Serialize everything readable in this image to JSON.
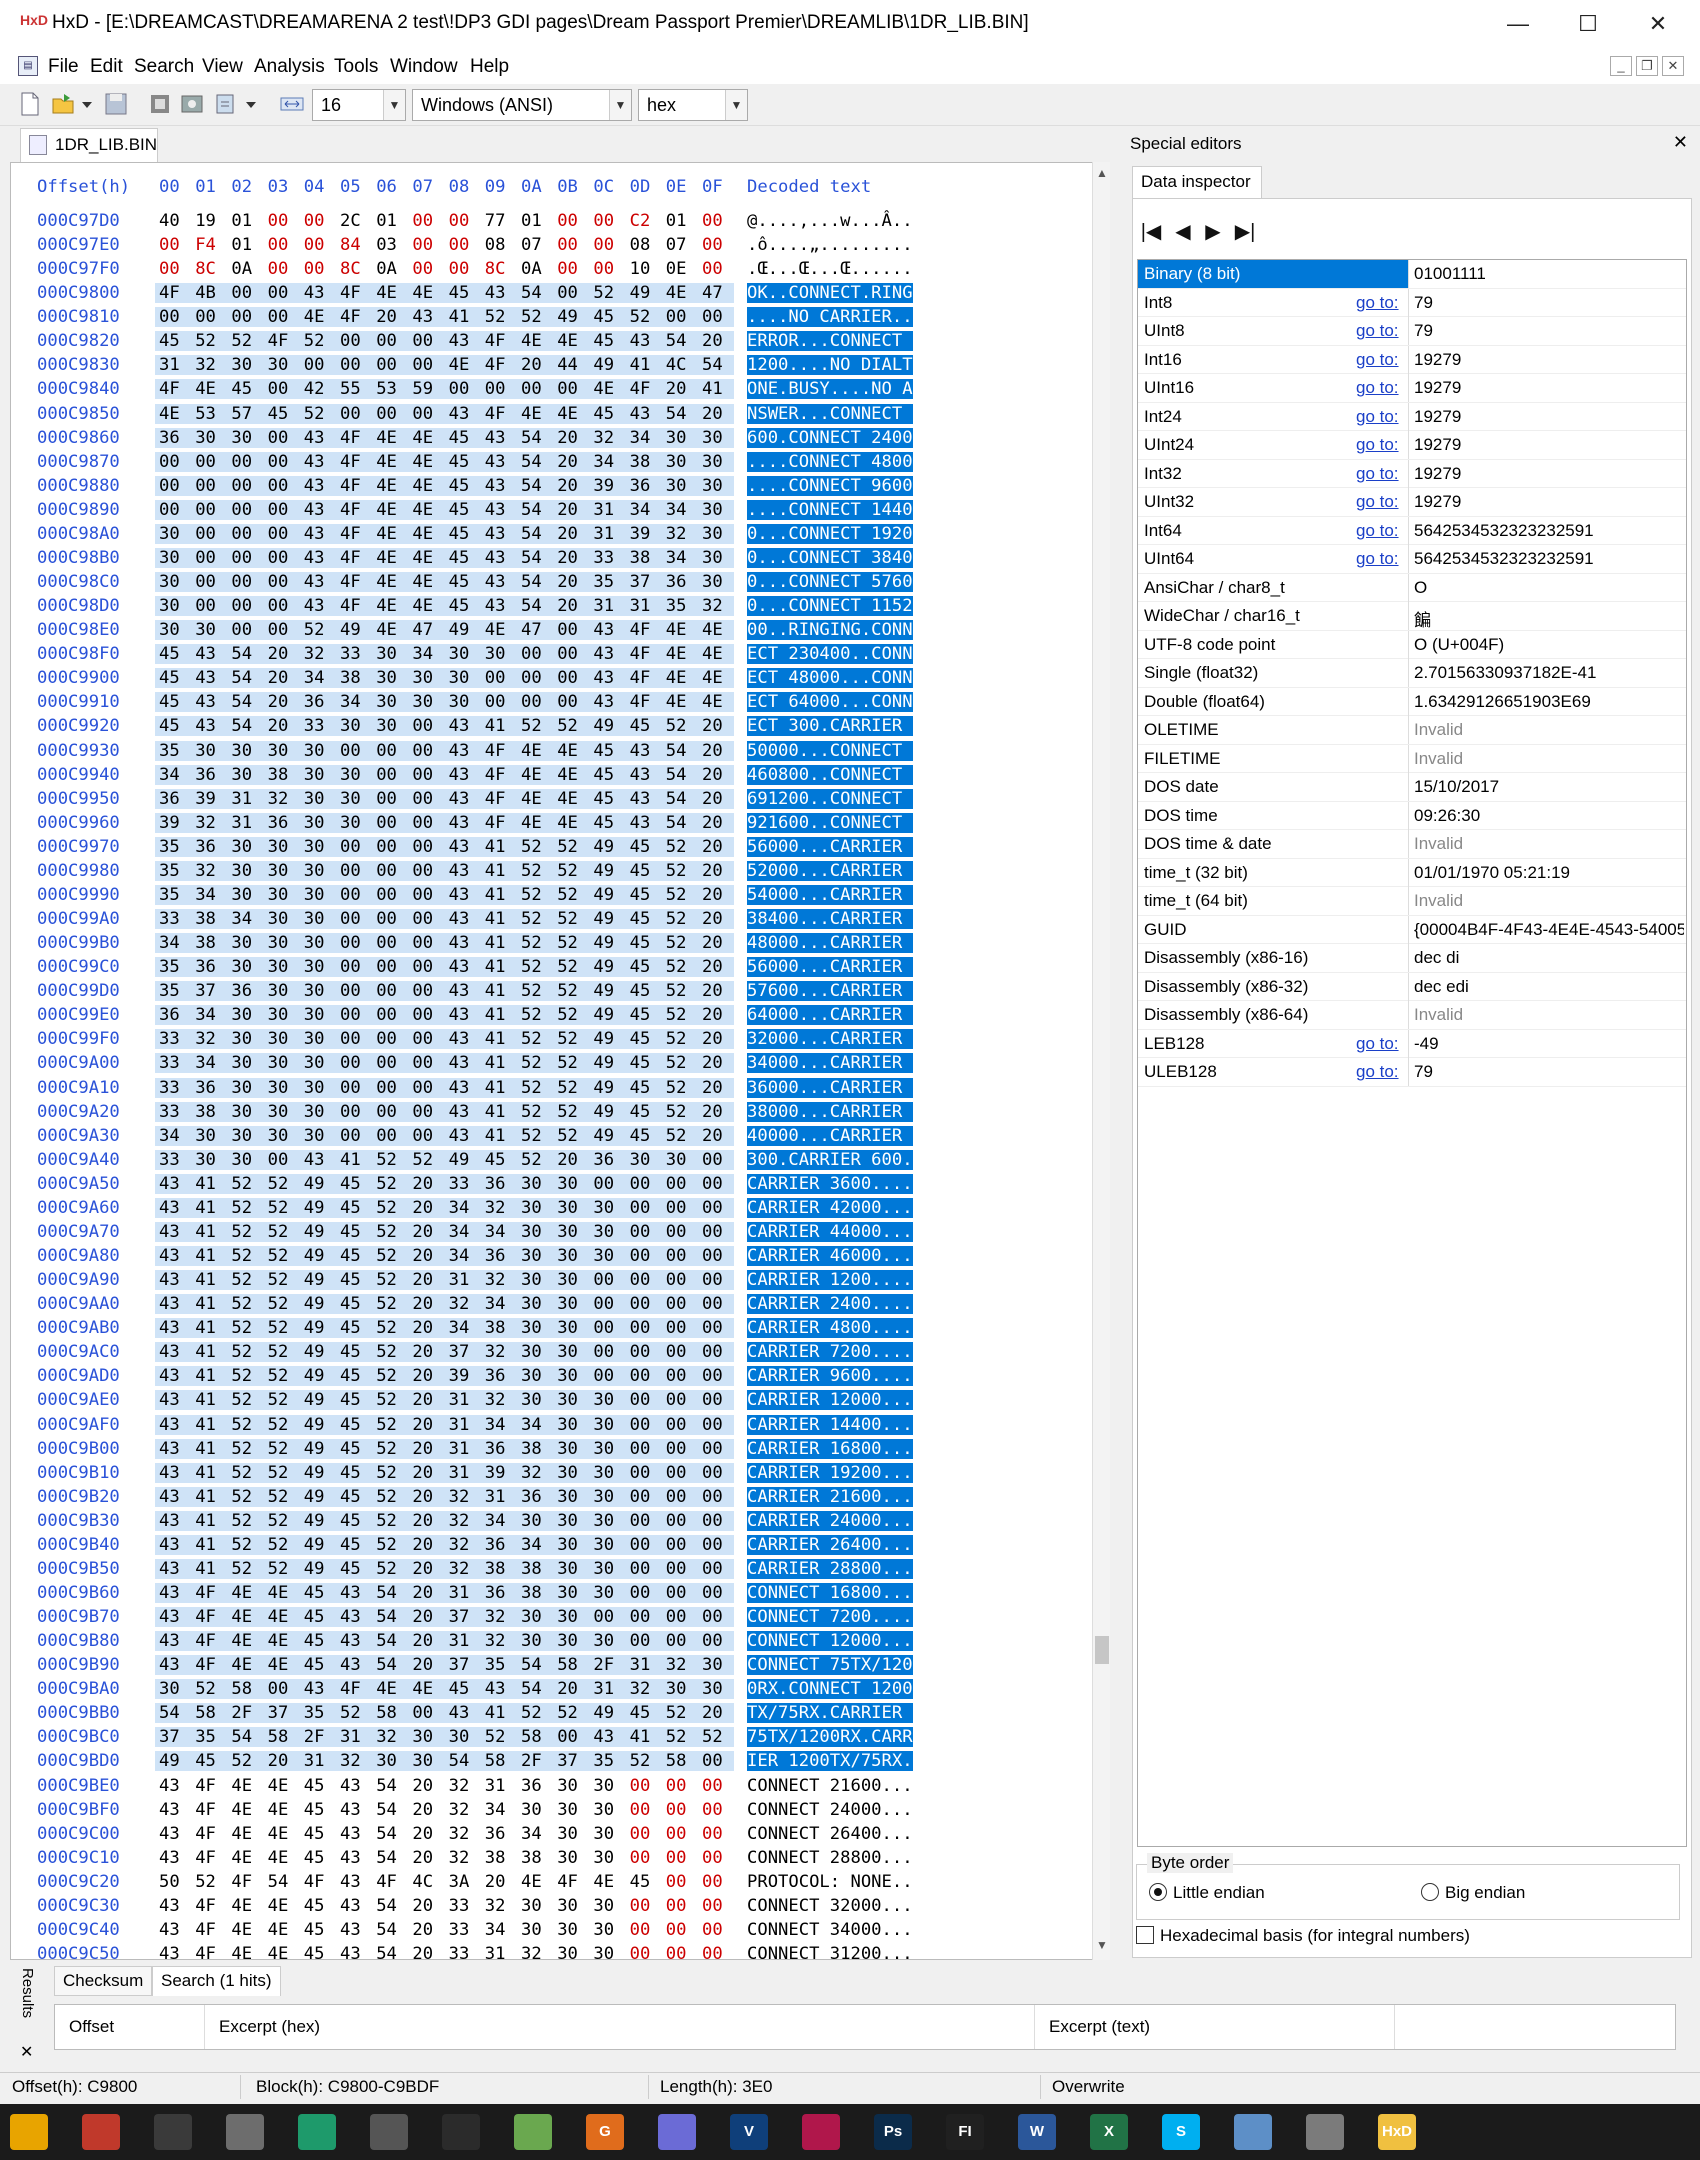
{
  "window": {
    "title": "HxD - [E:\\DREAMCAST\\DREAMARENA 2 test\\!DP3 GDI pages\\Dream Passport Premier\\DREAMLIB\\1DR_LIB.BIN]",
    "app_icon_text": "HxD",
    "minimize": "—",
    "maximize": "☐",
    "close": "✕"
  },
  "menubar": {
    "items": [
      "File",
      "Edit",
      "Search",
      "View",
      "Analysis",
      "Tools",
      "Window",
      "Help"
    ],
    "mdi_controls": [
      "_",
      "❐",
      "✕"
    ]
  },
  "toolbar": {
    "bytes_per_row": "16",
    "charset": "Windows (ANSI)",
    "offset_base": "hex"
  },
  "document_tab": {
    "label": "1DR_LIB.BIN"
  },
  "hex_view": {
    "header_offset": "Offset(h)",
    "header_columns": [
      "00",
      "01",
      "02",
      "03",
      "04",
      "05",
      "06",
      "07",
      "08",
      "09",
      "0A",
      "0B",
      "0C",
      "0D",
      "0E",
      "0F"
    ],
    "header_decoded": "Decoded text",
    "rows": [
      {
        "o": "000C97D0",
        "b": "40 19 01 00 00 2C 01 00 00 77 01 00 00 C2 01 00",
        "t": "@....,...w...Â..",
        "s": false
      },
      {
        "o": "000C97E0",
        "b": "00 F4 01 00 00 84 03 00 00 08 07 00 00 08 07 00",
        "t": ".ô....„.........",
        "s": false
      },
      {
        "o": "000C97F0",
        "b": "00 8C 0A 00 00 8C 0A 00 00 8C 0A 00 00 10 0E 00",
        "t": ".Œ...Œ...Œ......",
        "s": false
      },
      {
        "o": "000C9800",
        "b": "4F 4B 00 00 43 4F 4E 4E 45 43 54 00 52 49 4E 47",
        "t": "OK..CONNECT.RING",
        "s": true
      },
      {
        "o": "000C9810",
        "b": "00 00 00 00 4E 4F 20 43 41 52 52 49 45 52 00 00",
        "t": "....NO CARRIER..",
        "s": true
      },
      {
        "o": "000C9820",
        "b": "45 52 52 4F 52 00 00 00 43 4F 4E 4E 45 43 54 20",
        "t": "ERROR...CONNECT ",
        "s": true
      },
      {
        "o": "000C9830",
        "b": "31 32 30 30 00 00 00 00 4E 4F 20 44 49 41 4C 54",
        "t": "1200....NO DIALT",
        "s": true
      },
      {
        "o": "000C9840",
        "b": "4F 4E 45 00 42 55 53 59 00 00 00 00 4E 4F 20 41",
        "t": "ONE.BUSY....NO A",
        "s": true
      },
      {
        "o": "000C9850",
        "b": "4E 53 57 45 52 00 00 00 43 4F 4E 4E 45 43 54 20",
        "t": "NSWER...CONNECT ",
        "s": true
      },
      {
        "o": "000C9860",
        "b": "36 30 30 00 43 4F 4E 4E 45 43 54 20 32 34 30 30",
        "t": "600.CONNECT 2400",
        "s": true
      },
      {
        "o": "000C9870",
        "b": "00 00 00 00 43 4F 4E 4E 45 43 54 20 34 38 30 30",
        "t": "....CONNECT 4800",
        "s": true
      },
      {
        "o": "000C9880",
        "b": "00 00 00 00 43 4F 4E 4E 45 43 54 20 39 36 30 30",
        "t": "....CONNECT 9600",
        "s": true
      },
      {
        "o": "000C9890",
        "b": "00 00 00 00 43 4F 4E 4E 45 43 54 20 31 34 34 30",
        "t": "....CONNECT 1440",
        "s": true
      },
      {
        "o": "000C98A0",
        "b": "30 00 00 00 43 4F 4E 4E 45 43 54 20 31 39 32 30",
        "t": "0...CONNECT 1920",
        "s": true
      },
      {
        "o": "000C98B0",
        "b": "30 00 00 00 43 4F 4E 4E 45 43 54 20 33 38 34 30",
        "t": "0...CONNECT 3840",
        "s": true
      },
      {
        "o": "000C98C0",
        "b": "30 00 00 00 43 4F 4E 4E 45 43 54 20 35 37 36 30",
        "t": "0...CONNECT 5760",
        "s": true
      },
      {
        "o": "000C98D0",
        "b": "30 00 00 00 43 4F 4E 4E 45 43 54 20 31 31 35 32",
        "t": "0...CONNECT 1152",
        "s": true
      },
      {
        "o": "000C98E0",
        "b": "30 30 00 00 52 49 4E 47 49 4E 47 00 43 4F 4E 4E",
        "t": "00..RINGING.CONN",
        "s": true
      },
      {
        "o": "000C98F0",
        "b": "45 43 54 20 32 33 30 34 30 30 00 00 43 4F 4E 4E",
        "t": "ECT 230400..CONN",
        "s": true
      },
      {
        "o": "000C9900",
        "b": "45 43 54 20 34 38 30 30 30 00 00 00 43 4F 4E 4E",
        "t": "ECT 48000...CONN",
        "s": true
      },
      {
        "o": "000C9910",
        "b": "45 43 54 20 36 34 30 30 30 00 00 00 43 4F 4E 4E",
        "t": "ECT 64000...CONN",
        "s": true
      },
      {
        "o": "000C9920",
        "b": "45 43 54 20 33 30 30 00 43 41 52 52 49 45 52 20",
        "t": "ECT 300.CARRIER ",
        "s": true
      },
      {
        "o": "000C9930",
        "b": "35 30 30 30 30 00 00 00 43 4F 4E 4E 45 43 54 20",
        "t": "50000...CONNECT ",
        "s": true
      },
      {
        "o": "000C9940",
        "b": "34 36 30 38 30 30 00 00 43 4F 4E 4E 45 43 54 20",
        "t": "460800..CONNECT ",
        "s": true
      },
      {
        "o": "000C9950",
        "b": "36 39 31 32 30 30 00 00 43 4F 4E 4E 45 43 54 20",
        "t": "691200..CONNECT ",
        "s": true
      },
      {
        "o": "000C9960",
        "b": "39 32 31 36 30 30 00 00 43 4F 4E 4E 45 43 54 20",
        "t": "921600..CONNECT ",
        "s": true
      },
      {
        "o": "000C9970",
        "b": "35 36 30 30 30 00 00 00 43 41 52 52 49 45 52 20",
        "t": "56000...CARRIER ",
        "s": true
      },
      {
        "o": "000C9980",
        "b": "35 32 30 30 30 00 00 00 43 41 52 52 49 45 52 20",
        "t": "52000...CARRIER ",
        "s": true
      },
      {
        "o": "000C9990",
        "b": "35 34 30 30 30 00 00 00 43 41 52 52 49 45 52 20",
        "t": "54000...CARRIER ",
        "s": true
      },
      {
        "o": "000C99A0",
        "b": "33 38 34 30 30 00 00 00 43 41 52 52 49 45 52 20",
        "t": "38400...CARRIER ",
        "s": true
      },
      {
        "o": "000C99B0",
        "b": "34 38 30 30 30 00 00 00 43 41 52 52 49 45 52 20",
        "t": "48000...CARRIER ",
        "s": true
      },
      {
        "o": "000C99C0",
        "b": "35 36 30 30 30 00 00 00 43 41 52 52 49 45 52 20",
        "t": "56000...CARRIER ",
        "s": true
      },
      {
        "o": "000C99D0",
        "b": "35 37 36 30 30 00 00 00 43 41 52 52 49 45 52 20",
        "t": "57600...CARRIER ",
        "s": true
      },
      {
        "o": "000C99E0",
        "b": "36 34 30 30 30 00 00 00 43 41 52 52 49 45 52 20",
        "t": "64000...CARRIER ",
        "s": true
      },
      {
        "o": "000C99F0",
        "b": "33 32 30 30 30 00 00 00 43 41 52 52 49 45 52 20",
        "t": "32000...CARRIER ",
        "s": true
      },
      {
        "o": "000C9A00",
        "b": "33 34 30 30 30 00 00 00 43 41 52 52 49 45 52 20",
        "t": "34000...CARRIER ",
        "s": true
      },
      {
        "o": "000C9A10",
        "b": "33 36 30 30 30 00 00 00 43 41 52 52 49 45 52 20",
        "t": "36000...CARRIER ",
        "s": true
      },
      {
        "o": "000C9A20",
        "b": "33 38 30 30 30 00 00 00 43 41 52 52 49 45 52 20",
        "t": "38000...CARRIER ",
        "s": true
      },
      {
        "o": "000C9A30",
        "b": "34 30 30 30 30 00 00 00 43 41 52 52 49 45 52 20",
        "t": "40000...CARRIER ",
        "s": true
      },
      {
        "o": "000C9A40",
        "b": "33 30 30 00 43 41 52 52 49 45 52 20 36 30 30 00",
        "t": "300.CARRIER 600.",
        "s": true
      },
      {
        "o": "000C9A50",
        "b": "43 41 52 52 49 45 52 20 33 36 30 30 00 00 00 00",
        "t": "CARRIER 3600....",
        "s": true
      },
      {
        "o": "000C9A60",
        "b": "43 41 52 52 49 45 52 20 34 32 30 30 30 00 00 00",
        "t": "CARRIER 42000...",
        "s": true
      },
      {
        "o": "000C9A70",
        "b": "43 41 52 52 49 45 52 20 34 34 30 30 30 00 00 00",
        "t": "CARRIER 44000...",
        "s": true
      },
      {
        "o": "000C9A80",
        "b": "43 41 52 52 49 45 52 20 34 36 30 30 30 00 00 00",
        "t": "CARRIER 46000...",
        "s": true
      },
      {
        "o": "000C9A90",
        "b": "43 41 52 52 49 45 52 20 31 32 30 30 00 00 00 00",
        "t": "CARRIER 1200....",
        "s": true
      },
      {
        "o": "000C9AA0",
        "b": "43 41 52 52 49 45 52 20 32 34 30 30 00 00 00 00",
        "t": "CARRIER 2400....",
        "s": true
      },
      {
        "o": "000C9AB0",
        "b": "43 41 52 52 49 45 52 20 34 38 30 30 00 00 00 00",
        "t": "CARRIER 4800....",
        "s": true
      },
      {
        "o": "000C9AC0",
        "b": "43 41 52 52 49 45 52 20 37 32 30 30 00 00 00 00",
        "t": "CARRIER 7200....",
        "s": true
      },
      {
        "o": "000C9AD0",
        "b": "43 41 52 52 49 45 52 20 39 36 30 30 00 00 00 00",
        "t": "CARRIER 9600....",
        "s": true
      },
      {
        "o": "000C9AE0",
        "b": "43 41 52 52 49 45 52 20 31 32 30 30 30 00 00 00",
        "t": "CARRIER 12000...",
        "s": true
      },
      {
        "o": "000C9AF0",
        "b": "43 41 52 52 49 45 52 20 31 34 34 30 30 00 00 00",
        "t": "CARRIER 14400...",
        "s": true
      },
      {
        "o": "000C9B00",
        "b": "43 41 52 52 49 45 52 20 31 36 38 30 30 00 00 00",
        "t": "CARRIER 16800...",
        "s": true
      },
      {
        "o": "000C9B10",
        "b": "43 41 52 52 49 45 52 20 31 39 32 30 30 00 00 00",
        "t": "CARRIER 19200...",
        "s": true
      },
      {
        "o": "000C9B20",
        "b": "43 41 52 52 49 45 52 20 32 31 36 30 30 00 00 00",
        "t": "CARRIER 21600...",
        "s": true
      },
      {
        "o": "000C9B30",
        "b": "43 41 52 52 49 45 52 20 32 34 30 30 30 00 00 00",
        "t": "CARRIER 24000...",
        "s": true
      },
      {
        "o": "000C9B40",
        "b": "43 41 52 52 49 45 52 20 32 36 34 30 30 00 00 00",
        "t": "CARRIER 26400...",
        "s": true
      },
      {
        "o": "000C9B50",
        "b": "43 41 52 52 49 45 52 20 32 38 38 30 30 00 00 00",
        "t": "CARRIER 28800...",
        "s": true
      },
      {
        "o": "000C9B60",
        "b": "43 4F 4E 4E 45 43 54 20 31 36 38 30 30 00 00 00",
        "t": "CONNECT 16800...",
        "s": true
      },
      {
        "o": "000C9B70",
        "b": "43 4F 4E 4E 45 43 54 20 37 32 30 30 00 00 00 00",
        "t": "CONNECT 7200....",
        "s": true
      },
      {
        "o": "000C9B80",
        "b": "43 4F 4E 4E 45 43 54 20 31 32 30 30 30 00 00 00",
        "t": "CONNECT 12000...",
        "s": true
      },
      {
        "o": "000C9B90",
        "b": "43 4F 4E 4E 45 43 54 20 37 35 54 58 2F 31 32 30",
        "t": "CONNECT 75TX/120",
        "s": true
      },
      {
        "o": "000C9BA0",
        "b": "30 52 58 00 43 4F 4E 4E 45 43 54 20 31 32 30 30",
        "t": "0RX.CONNECT 1200",
        "s": true
      },
      {
        "o": "000C9BB0",
        "b": "54 58 2F 37 35 52 58 00 43 41 52 52 49 45 52 20",
        "t": "TX/75RX.CARRIER ",
        "s": true
      },
      {
        "o": "000C9BC0",
        "b": "37 35 54 58 2F 31 32 30 30 52 58 00 43 41 52 52",
        "t": "75TX/1200RX.CARR",
        "s": true
      },
      {
        "o": "000C9BD0",
        "b": "49 45 52 20 31 32 30 30 54 58 2F 37 35 52 58 00",
        "t": "IER 1200TX/75RX.",
        "s": true
      },
      {
        "o": "000C9BE0",
        "b": "43 4F 4E 4E 45 43 54 20 32 31 36 30 30 00 00 00",
        "t": "CONNECT 21600...",
        "s": false
      },
      {
        "o": "000C9BF0",
        "b": "43 4F 4E 4E 45 43 54 20 32 34 30 30 30 00 00 00",
        "t": "CONNECT 24000...",
        "s": false
      },
      {
        "o": "000C9C00",
        "b": "43 4F 4E 4E 45 43 54 20 32 36 34 30 30 00 00 00",
        "t": "CONNECT 26400...",
        "s": false
      },
      {
        "o": "000C9C10",
        "b": "43 4F 4E 4E 45 43 54 20 32 38 38 30 30 00 00 00",
        "t": "CONNECT 28800...",
        "s": false
      },
      {
        "o": "000C9C20",
        "b": "50 52 4F 54 4F 43 4F 4C 3A 20 4E 4F 4E 45 00 00",
        "t": "PROTOCOL: NONE..",
        "s": false
      },
      {
        "o": "000C9C30",
        "b": "43 4F 4E 4E 45 43 54 20 33 32 30 30 30 00 00 00",
        "t": "CONNECT 32000...",
        "s": false
      },
      {
        "o": "000C9C40",
        "b": "43 4F 4E 4E 45 43 54 20 33 34 30 30 30 00 00 00",
        "t": "CONNECT 34000...",
        "s": false
      },
      {
        "o": "000C9C50",
        "b": "43 4F 4E 4E 45 43 54 20 33 31 32 30 30 00 00 00",
        "t": "CONNECT 31200...",
        "s": false
      }
    ]
  },
  "special_editors": {
    "title": "Special editors",
    "close": "✕",
    "tab": "Data inspector",
    "nav": [
      "|◀",
      "◀",
      "▶",
      "▶|"
    ],
    "goto_label": "go to:",
    "rows": [
      {
        "label": "Binary (8 bit)",
        "value": "01001111",
        "goto": false,
        "selected": true,
        "invalid": false
      },
      {
        "label": "Int8",
        "value": "79",
        "goto": true,
        "selected": false,
        "invalid": false
      },
      {
        "label": "UInt8",
        "value": "79",
        "goto": true,
        "selected": false,
        "invalid": false
      },
      {
        "label": "Int16",
        "value": "19279",
        "goto": true,
        "selected": false,
        "invalid": false
      },
      {
        "label": "UInt16",
        "value": "19279",
        "goto": true,
        "selected": false,
        "invalid": false
      },
      {
        "label": "Int24",
        "value": "19279",
        "goto": true,
        "selected": false,
        "invalid": false
      },
      {
        "label": "UInt24",
        "value": "19279",
        "goto": true,
        "selected": false,
        "invalid": false
      },
      {
        "label": "Int32",
        "value": "19279",
        "goto": true,
        "selected": false,
        "invalid": false
      },
      {
        "label": "UInt32",
        "value": "19279",
        "goto": true,
        "selected": false,
        "invalid": false
      },
      {
        "label": "Int64",
        "value": "5642534532323232591",
        "goto": true,
        "selected": false,
        "invalid": false
      },
      {
        "label": "UInt64",
        "value": "5642534532323232591",
        "goto": true,
        "selected": false,
        "invalid": false
      },
      {
        "label": "AnsiChar / char8_t",
        "value": "O",
        "goto": false,
        "selected": false,
        "invalid": false
      },
      {
        "label": "WideChar / char16_t",
        "value": "䭏",
        "goto": false,
        "selected": false,
        "invalid": false
      },
      {
        "label": "UTF-8 code point",
        "value": "O (U+004F)",
        "goto": false,
        "selected": false,
        "invalid": false
      },
      {
        "label": "Single (float32)",
        "value": "2.70156330937182E-41",
        "goto": false,
        "selected": false,
        "invalid": false
      },
      {
        "label": "Double (float64)",
        "value": "1.63429126651903E69",
        "goto": false,
        "selected": false,
        "invalid": false
      },
      {
        "label": "OLETIME",
        "value": "Invalid",
        "goto": false,
        "selected": false,
        "invalid": true
      },
      {
        "label": "FILETIME",
        "value": "Invalid",
        "goto": false,
        "selected": false,
        "invalid": true
      },
      {
        "label": "DOS date",
        "value": "15/10/2017",
        "goto": false,
        "selected": false,
        "invalid": false
      },
      {
        "label": "DOS time",
        "value": "09:26:30",
        "goto": false,
        "selected": false,
        "invalid": false
      },
      {
        "label": "DOS time & date",
        "value": "Invalid",
        "goto": false,
        "selected": false,
        "invalid": true
      },
      {
        "label": "time_t (32 bit)",
        "value": "01/01/1970 05:21:19",
        "goto": false,
        "selected": false,
        "invalid": false
      },
      {
        "label": "time_t (64 bit)",
        "value": "Invalid",
        "goto": false,
        "selected": false,
        "invalid": true
      },
      {
        "label": "GUID",
        "value": "{00004B4F-4F43-4E4E-4543-54005",
        "goto": false,
        "selected": false,
        "invalid": false
      },
      {
        "label": "Disassembly (x86-16)",
        "value": "dec di",
        "goto": false,
        "selected": false,
        "invalid": false
      },
      {
        "label": "Disassembly (x86-32)",
        "value": "dec edi",
        "goto": false,
        "selected": false,
        "invalid": false
      },
      {
        "label": "Disassembly (x86-64)",
        "value": "Invalid",
        "goto": false,
        "selected": false,
        "invalid": true
      },
      {
        "label": "LEB128",
        "value": "-49",
        "goto": true,
        "selected": false,
        "invalid": false
      },
      {
        "label": "ULEB128",
        "value": "79",
        "goto": true,
        "selected": false,
        "invalid": false
      }
    ],
    "byte_order": {
      "legend": "Byte order",
      "little": "Little endian",
      "big": "Big endian",
      "selected": "little"
    },
    "hex_basis": "Hexadecimal basis (for integral numbers)"
  },
  "results": {
    "side_label": "Results",
    "close": "✕",
    "tabs": [
      "Checksum",
      "Search (1 hits)"
    ],
    "active_tab": 1,
    "columns": [
      "Offset",
      "Excerpt (hex)",
      "Excerpt (text)"
    ]
  },
  "status": {
    "offset": "Offset(h): C9800",
    "block": "Block(h): C9800-C9BDF",
    "length": "Length(h): 3E0",
    "mode": "Overwrite"
  },
  "taskbar": {
    "apps": [
      {
        "name": "app-1",
        "label": "",
        "color": "#e8a400"
      },
      {
        "name": "app-2",
        "label": "",
        "color": "#c0392b"
      },
      {
        "name": "app-3",
        "label": "",
        "color": "#3a3a3a"
      },
      {
        "name": "app-4",
        "label": "",
        "color": "#6d6d6d"
      },
      {
        "name": "app-5",
        "label": "",
        "color": "#1e9a6b"
      },
      {
        "name": "app-6",
        "label": "",
        "color": "#555555"
      },
      {
        "name": "app-7",
        "label": "",
        "color": "#2b2b2b"
      },
      {
        "name": "app-8",
        "label": "",
        "color": "#6aa84f"
      },
      {
        "name": "app-9",
        "label": "G",
        "color": "#e06c1c"
      },
      {
        "name": "app-10",
        "label": "",
        "color": "#6b6bd6"
      },
      {
        "name": "app-11",
        "label": "V",
        "color": "#0f3f7a"
      },
      {
        "name": "app-12",
        "label": "",
        "color": "#b0174b"
      },
      {
        "name": "app-13",
        "label": "Ps",
        "color": "#0b2b4a"
      },
      {
        "name": "app-14",
        "label": "FI",
        "color": "#202020"
      },
      {
        "name": "app-15",
        "label": "W",
        "color": "#2b579a"
      },
      {
        "name": "app-16",
        "label": "X",
        "color": "#217346"
      },
      {
        "name": "app-17",
        "label": "S",
        "color": "#00aff0"
      },
      {
        "name": "app-18",
        "label": "",
        "color": "#5d8fc7"
      },
      {
        "name": "app-19",
        "label": "",
        "color": "#7b7b7b"
      },
      {
        "name": "app-20",
        "label": "HxD",
        "color": "#f0c040"
      }
    ]
  }
}
